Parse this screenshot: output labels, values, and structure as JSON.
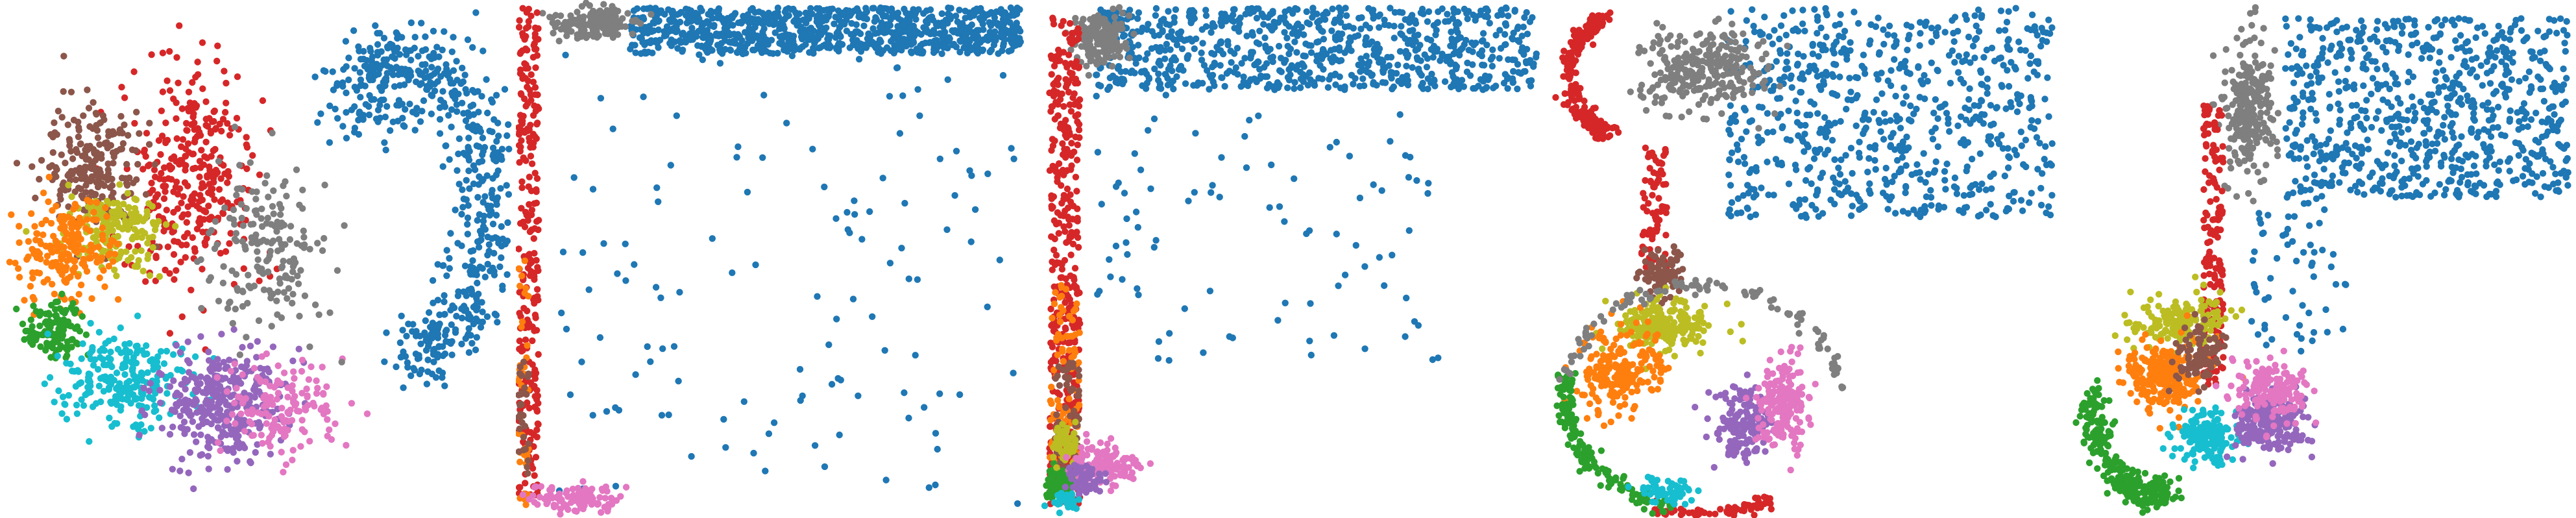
{
  "palette": {
    "blue": "#1f77b4",
    "orange": "#ff7f0e",
    "green": "#2ca02c",
    "red": "#d62728",
    "purple": "#9467bd",
    "brown": "#8c564b",
    "pink": "#e377c2",
    "gray": "#7f7f7f",
    "olive": "#bcbd22",
    "cyan": "#17becf"
  },
  "chart_data": [
    {
      "type": "scatter",
      "xlim": [
        0,
        100
      ],
      "ylim": [
        0,
        100
      ],
      "axes_visible": false,
      "grid": false,
      "legend": "none",
      "clusters": [
        {
          "color": "blue",
          "shape": "arc",
          "cx": 76,
          "cy": 60,
          "rx": 20,
          "ry": 30,
          "a0": -80,
          "a1": 110,
          "width": 7,
          "n": 520,
          "seed": 11
        },
        {
          "color": "blue",
          "shape": "blob",
          "cx": 73,
          "cy": 81,
          "rx": 10,
          "ry": 8,
          "n": 90,
          "seed": 12
        },
        {
          "color": "red",
          "shape": "blob",
          "cx": 36,
          "cy": 66,
          "rx": 13,
          "ry": 22,
          "n": 320,
          "seed": 13
        },
        {
          "color": "brown",
          "shape": "blob",
          "cx": 18,
          "cy": 68,
          "rx": 10,
          "ry": 13,
          "n": 220,
          "seed": 14
        },
        {
          "color": "olive",
          "shape": "blob",
          "cx": 22,
          "cy": 56,
          "rx": 10,
          "ry": 8,
          "n": 170,
          "seed": 15
        },
        {
          "color": "orange",
          "shape": "blob",
          "cx": 13,
          "cy": 52,
          "rx": 9,
          "ry": 10,
          "n": 200,
          "seed": 16
        },
        {
          "color": "green",
          "shape": "blob",
          "cx": 10,
          "cy": 36,
          "rx": 6,
          "ry": 7,
          "n": 130,
          "seed": 17
        },
        {
          "color": "cyan",
          "shape": "blob",
          "cx": 24,
          "cy": 26,
          "rx": 13,
          "ry": 9,
          "n": 240,
          "seed": 18
        },
        {
          "color": "purple",
          "shape": "blob",
          "cx": 43,
          "cy": 22,
          "rx": 13,
          "ry": 11,
          "n": 340,
          "seed": 19
        },
        {
          "color": "pink",
          "shape": "blob",
          "cx": 55,
          "cy": 21,
          "rx": 11,
          "ry": 9,
          "n": 150,
          "seed": 20
        },
        {
          "color": "gray",
          "shape": "blob",
          "cx": 52,
          "cy": 52,
          "rx": 12,
          "ry": 18,
          "n": 180,
          "seed": 21
        }
      ]
    },
    {
      "type": "scatter",
      "xlim": [
        0,
        100
      ],
      "ylim": [
        0,
        100
      ],
      "axes_visible": false,
      "grid": false,
      "legend": "none",
      "clusters": [
        {
          "color": "blue",
          "shape": "band",
          "x0": 22,
          "x1": 99,
          "y0": 90,
          "y1": 99,
          "n": 900,
          "seed": 31
        },
        {
          "color": "blue",
          "shape": "band",
          "x0": 8,
          "x1": 99,
          "y0": 2,
          "y1": 90,
          "n": 130,
          "seed": 32
        },
        {
          "color": "gray",
          "shape": "blob",
          "cx": 15,
          "cy": 96,
          "rx": 8,
          "ry": 3,
          "n": 180,
          "seed": 33
        },
        {
          "color": "red",
          "shape": "band",
          "x0": 0,
          "x1": 4,
          "y0": 3,
          "y1": 99,
          "n": 260,
          "seed": 34
        },
        {
          "color": "orange",
          "shape": "band",
          "x0": 0,
          "x1": 2,
          "y0": 2,
          "y1": 50,
          "n": 40,
          "seed": 35
        },
        {
          "color": "pink",
          "shape": "blob",
          "cx": 12,
          "cy": 3,
          "rx": 9,
          "ry": 3,
          "n": 110,
          "seed": 36
        },
        {
          "color": "brown",
          "shape": "band",
          "x0": 0,
          "x1": 2,
          "y0": 5,
          "y1": 30,
          "n": 30,
          "seed": 37
        }
      ]
    },
    {
      "type": "scatter",
      "xlim": [
        0,
        100
      ],
      "ylim": [
        0,
        100
      ],
      "axes_visible": false,
      "grid": false,
      "legend": "none",
      "clusters": [
        {
          "color": "blue",
          "shape": "band",
          "x0": 12,
          "x1": 99,
          "y0": 83,
          "y1": 99,
          "n": 820,
          "seed": 51
        },
        {
          "color": "blue",
          "shape": "band",
          "x0": 12,
          "x1": 80,
          "y0": 30,
          "y1": 83,
          "n": 90,
          "seed": 52
        },
        {
          "color": "gray",
          "shape": "blob",
          "cx": 13,
          "cy": 93,
          "rx": 5,
          "ry": 5,
          "n": 170,
          "seed": 53
        },
        {
          "color": "red",
          "shape": "band",
          "x0": 3,
          "x1": 9,
          "y0": 2,
          "y1": 98,
          "n": 380,
          "seed": 54
        },
        {
          "color": "orange",
          "shape": "band",
          "x0": 3,
          "x1": 9,
          "y0": 5,
          "y1": 45,
          "n": 90,
          "seed": 55
        },
        {
          "color": "brown",
          "shape": "band",
          "x0": 4,
          "x1": 9,
          "y0": 8,
          "y1": 30,
          "n": 60,
          "seed": 56
        },
        {
          "color": "green",
          "shape": "blob",
          "cx": 5,
          "cy": 6,
          "rx": 3,
          "ry": 3,
          "n": 110,
          "seed": 57
        },
        {
          "color": "olive",
          "shape": "blob",
          "cx": 6,
          "cy": 14,
          "rx": 3,
          "ry": 4,
          "n": 60,
          "seed": 58
        },
        {
          "color": "pink",
          "shape": "blob",
          "cx": 14,
          "cy": 10,
          "rx": 7,
          "ry": 4,
          "n": 120,
          "seed": 59
        },
        {
          "color": "purple",
          "shape": "blob",
          "cx": 10,
          "cy": 7,
          "rx": 4,
          "ry": 3,
          "n": 70,
          "seed": 60
        },
        {
          "color": "cyan",
          "shape": "blob",
          "cx": 6,
          "cy": 3,
          "rx": 3,
          "ry": 2,
          "n": 40,
          "seed": 61
        }
      ]
    },
    {
      "type": "scatter",
      "xlim": [
        0,
        100
      ],
      "ylim": [
        0,
        100
      ],
      "axes_visible": false,
      "grid": false,
      "legend": "none",
      "clusters": [
        {
          "color": "blue",
          "shape": "band",
          "x0": 35,
          "x1": 99,
          "y0": 58,
          "y1": 99,
          "n": 700,
          "seed": 71
        },
        {
          "color": "gray",
          "shape": "blob",
          "cx": 30,
          "cy": 87,
          "rx": 13,
          "ry": 9,
          "n": 260,
          "seed": 72
        },
        {
          "color": "red",
          "shape": "arc",
          "cx": 12,
          "cy": 86,
          "rx": 8,
          "ry": 11,
          "a0": 90,
          "a1": 270,
          "width": 2,
          "n": 200,
          "seed": 73
        },
        {
          "color": "red",
          "shape": "band",
          "x0": 18,
          "x1": 23,
          "y0": 48,
          "y1": 72,
          "n": 80,
          "seed": 74
        },
        {
          "color": "red",
          "shape": "arc",
          "cx": 30,
          "cy": 23,
          "rx": 27,
          "ry": 23,
          "a0": 250,
          "a1": 300,
          "width": 1.5,
          "n": 90,
          "seed": 75
        },
        {
          "color": "brown",
          "shape": "blob",
          "cx": 22,
          "cy": 47,
          "rx": 4,
          "ry": 5,
          "n": 80,
          "seed": 76
        },
        {
          "color": "olive",
          "shape": "blob",
          "cx": 22,
          "cy": 37,
          "rx": 9,
          "ry": 5,
          "n": 220,
          "seed": 77
        },
        {
          "color": "orange",
          "shape": "blob",
          "cx": 14,
          "cy": 28,
          "rx": 8,
          "ry": 8,
          "n": 200,
          "seed": 78
        },
        {
          "color": "green",
          "shape": "arc",
          "cx": 30,
          "cy": 23,
          "rx": 27,
          "ry": 22,
          "a0": 170,
          "a1": 255,
          "width": 2,
          "n": 160,
          "seed": 79
        },
        {
          "color": "purple",
          "shape": "blob",
          "cx": 38,
          "cy": 18,
          "rx": 6,
          "ry": 7,
          "n": 150,
          "seed": 80
        },
        {
          "color": "pink",
          "shape": "blob",
          "cx": 46,
          "cy": 22,
          "rx": 5,
          "ry": 9,
          "n": 170,
          "seed": 81
        },
        {
          "color": "cyan",
          "shape": "blob",
          "cx": 23,
          "cy": 5,
          "rx": 7,
          "ry": 3,
          "n": 60,
          "seed": 82
        },
        {
          "color": "gray",
          "shape": "arc",
          "cx": 30,
          "cy": 23,
          "rx": 27,
          "ry": 22,
          "a0": 0,
          "a1": 170,
          "width": 1.5,
          "n": 110,
          "seed": 83
        }
      ]
    },
    {
      "type": "scatter",
      "xlim": [
        0,
        100
      ],
      "ylim": [
        0,
        100
      ],
      "axes_visible": false,
      "grid": false,
      "legend": "none",
      "clusters": [
        {
          "color": "blue",
          "shape": "band",
          "x0": 43,
          "x1": 99,
          "y0": 62,
          "y1": 97,
          "n": 760,
          "seed": 91
        },
        {
          "color": "gray",
          "shape": "blob",
          "cx": 36,
          "cy": 80,
          "rx": 5,
          "ry": 14,
          "n": 250,
          "seed": 92
        },
        {
          "color": "red",
          "shape": "band",
          "x0": 27,
          "x1": 31,
          "y0": 25,
          "y1": 80,
          "n": 170,
          "seed": 93
        },
        {
          "color": "olive",
          "shape": "blob",
          "cx": 22,
          "cy": 38,
          "rx": 10,
          "ry": 5,
          "n": 160,
          "seed": 94
        },
        {
          "color": "orange",
          "shape": "blob",
          "cx": 19,
          "cy": 27,
          "rx": 8,
          "ry": 7,
          "n": 220,
          "seed": 95
        },
        {
          "color": "green",
          "shape": "arc",
          "cx": 17,
          "cy": 24,
          "rx": 12,
          "ry": 20,
          "a0": 180,
          "a1": 290,
          "width": 3,
          "n": 260,
          "seed": 96
        },
        {
          "color": "brown",
          "shape": "blob",
          "cx": 26,
          "cy": 31,
          "rx": 5,
          "ry": 6,
          "n": 90,
          "seed": 97
        },
        {
          "color": "cyan",
          "shape": "blob",
          "cx": 28,
          "cy": 15,
          "rx": 6,
          "ry": 5,
          "n": 190,
          "seed": 98
        },
        {
          "color": "purple",
          "shape": "blob",
          "cx": 40,
          "cy": 18,
          "rx": 7,
          "ry": 6,
          "n": 230,
          "seed": 99
        },
        {
          "color": "pink",
          "shape": "blob",
          "cx": 41,
          "cy": 24,
          "rx": 7,
          "ry": 6,
          "n": 160,
          "seed": 100
        },
        {
          "color": "blue",
          "shape": "band",
          "x0": 36,
          "x1": 56,
          "y0": 32,
          "y1": 62,
          "n": 60,
          "seed": 101
        }
      ]
    }
  ]
}
